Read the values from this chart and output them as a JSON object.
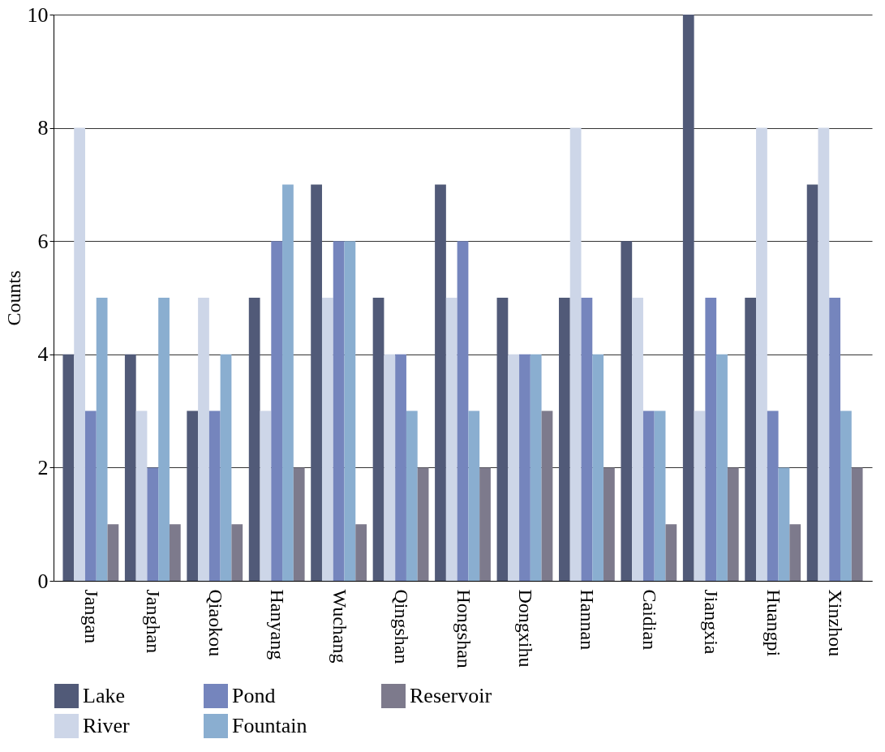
{
  "chart_data": {
    "type": "bar",
    "ylabel": "Counts",
    "categories": [
      "Jangan",
      "Janghan",
      "Qiaokou",
      "Hanyang",
      "Wuchang",
      "Qingshan",
      "Hongshan",
      "Dongxihu",
      "Hannan",
      "Caidian",
      "Jiangxia",
      "Huangpi",
      "Xinzhou"
    ],
    "series": [
      {
        "name": "Lake",
        "color": "#515a78",
        "values": [
          4,
          4,
          3,
          5,
          7,
          5,
          7,
          5,
          5,
          6,
          10,
          5,
          7
        ]
      },
      {
        "name": "River",
        "color": "#cdd6e8",
        "values": [
          8,
          3,
          5,
          3,
          5,
          4,
          5,
          4,
          8,
          5,
          3,
          8,
          8
        ]
      },
      {
        "name": "Pond",
        "color": "#7585bd",
        "values": [
          3,
          2,
          3,
          6,
          6,
          4,
          6,
          4,
          5,
          3,
          5,
          3,
          5
        ]
      },
      {
        "name": "Fountain",
        "color": "#8aaed0",
        "values": [
          5,
          5,
          4,
          7,
          6,
          3,
          3,
          4,
          4,
          3,
          4,
          2,
          3
        ]
      },
      {
        "name": "Reservoir",
        "color": "#7d7a8c",
        "values": [
          1,
          1,
          1,
          2,
          1,
          2,
          2,
          3,
          2,
          1,
          2,
          1,
          2
        ]
      }
    ],
    "ylim": [
      0,
      10
    ],
    "yticks": [
      0,
      2,
      4,
      6,
      8,
      10
    ],
    "grid": "y",
    "legend": "bottom"
  }
}
